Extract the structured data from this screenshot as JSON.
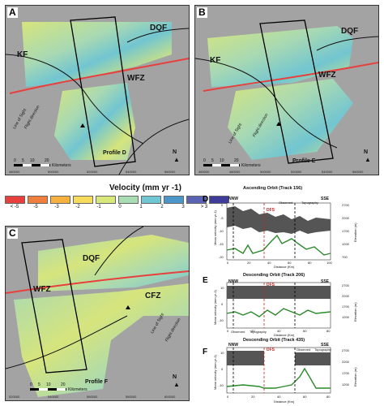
{
  "panels": {
    "A": {
      "label": "A",
      "faults": [
        "DQF",
        "KF",
        "WFZ"
      ],
      "profile": "Profile D",
      "los": "Line of Sight",
      "flight": "Flight direction",
      "north": "N",
      "scale": [
        "0",
        "5",
        "10",
        "20"
      ],
      "scale_unit": "Kilometers",
      "xticks": [
        "480000",
        "500000",
        "520000",
        "540000",
        "560000"
      ],
      "yticks": [
        "3920000",
        "3900000",
        "3880000"
      ]
    },
    "B": {
      "label": "B",
      "faults": [
        "DQF",
        "KF",
        "WFZ"
      ],
      "profile": "Profile E",
      "los": "Line of Sight",
      "flight": "Flight direction",
      "north": "N",
      "scale": [
        "0",
        "5",
        "10",
        "20"
      ],
      "scale_unit": "Kilometers",
      "xticks": [
        "460000",
        "480000",
        "500000",
        "520000",
        "540000",
        "560000"
      ],
      "yticks": [
        "3920000",
        "3900000",
        "3880000"
      ]
    },
    "C": {
      "label": "C",
      "faults": [
        "DQF",
        "WFZ",
        "CFZ"
      ],
      "profile": "Profile F",
      "los": "Line of Sight",
      "flight": "Flight direction",
      "north": "N",
      "scale": [
        "0",
        "5",
        "10",
        "20"
      ],
      "scale_unit": "Kilometers",
      "xticks": [
        "520000",
        "540000",
        "560000",
        "580000",
        "600000"
      ],
      "yticks": [
        "3920000",
        "3900000"
      ]
    }
  },
  "legend": {
    "title": "Velocity (mm yr -1)",
    "labels": [
      "< -5",
      "-5",
      "-3",
      "-2",
      "-1",
      "0",
      "1",
      "2",
      "3",
      "> 3"
    ],
    "colors": [
      "#e8403c",
      "#f07f3e",
      "#f7b13f",
      "#f6dc5a",
      "#d9e87a",
      "#a9dcb3",
      "#6fc7d3",
      "#4b97c9",
      "#5a63b4",
      "#3f3b98"
    ]
  },
  "profiles": {
    "D": {
      "label": "D",
      "title": "Ascending Orbit (Track 156)",
      "left": "NNW",
      "right": "SSE",
      "fault": "DFS",
      "legend": [
        "Observed",
        "Topography"
      ],
      "ylabel": "Mean velocity (mm yr-1)",
      "y2label": "Elevation (m)",
      "xlabel": "Distance (Km)",
      "xticks": [
        "0",
        "20",
        "40",
        "60",
        "80",
        "100"
      ],
      "yticks": [
        "0",
        "-5",
        "-10",
        "-15",
        "-20"
      ],
      "y2ticks": [
        "2700",
        "2200",
        "1700",
        "1200",
        "700"
      ]
    },
    "E": {
      "label": "E",
      "title": "Descending Orbit (Track 206)",
      "left": "NNW",
      "right": "SSE",
      "fault": "DFS",
      "legend": [
        "Observed",
        "Topography"
      ],
      "ylabel": "Mean velocity (mm yr-1)",
      "y2label": "Elevation (m)",
      "xlabel": "Distance (Km)",
      "xticks": [
        "0",
        "20",
        "40",
        "60",
        "80"
      ],
      "yticks": [
        "10",
        "0",
        "-10"
      ],
      "y2ticks": [
        "2700",
        "2200",
        "1700",
        "1200"
      ]
    },
    "F": {
      "label": "F",
      "title": "Descending Orbit (Track 435)",
      "left": "NNW",
      "right": "SSE",
      "fault": "DFS",
      "legend": [
        "Observed",
        "Topography"
      ],
      "ylabel": "Mean velocity (mm yr-1)",
      "y2label": "Elevation (m)",
      "xlabel": "Distance (Km)",
      "xticks": [
        "0",
        "20",
        "40",
        "60",
        "80"
      ],
      "yticks": [
        "10",
        "0",
        "-10"
      ],
      "y2ticks": [
        "2700",
        "2200",
        "1700",
        "1200"
      ]
    }
  }
}
